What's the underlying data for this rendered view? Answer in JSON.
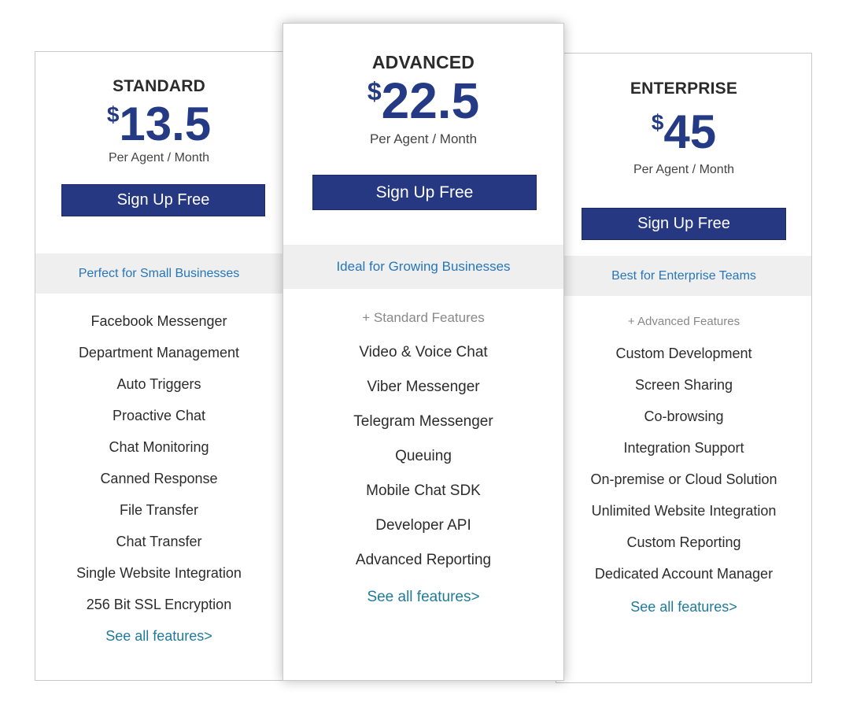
{
  "plans": [
    {
      "name": "STANDARD",
      "currency": "$",
      "price": "13.5",
      "period": "Per Agent / Month",
      "cta": "Sign Up Free",
      "tagline": "Perfect for Small Businesses",
      "features": [
        "Facebook Messenger",
        "Department Management",
        "Auto Triggers",
        "Proactive Chat",
        "Chat Monitoring",
        "Canned Response",
        "File Transfer",
        "Chat Transfer",
        "Single Website Integration",
        "256 Bit SSL Encryption"
      ],
      "see_all": "See all features>"
    },
    {
      "name": "ADVANCED",
      "currency": "$",
      "price": "22.5",
      "period": "Per Agent / Month",
      "cta": "Sign Up Free",
      "tagline": "Ideal for Growing Businesses",
      "includes": "+ Standard Features",
      "features": [
        "Video & Voice Chat",
        "Viber Messenger",
        "Telegram Messenger",
        "Queuing",
        "Mobile Chat SDK",
        "Developer API",
        "Advanced Reporting"
      ],
      "see_all": "See all features>"
    },
    {
      "name": "ENTERPRISE",
      "currency": "$",
      "price": "45",
      "period": "Per Agent / Month",
      "cta": "Sign Up Free",
      "tagline": "Best for Enterprise Teams",
      "includes": "+ Advanced Features",
      "features": [
        "Custom Development",
        "Screen Sharing",
        "Co-browsing",
        "Integration Support",
        "On-premise or Cloud Solution",
        "Unlimited Website Integration",
        "Custom Reporting",
        "Dedicated Account Manager"
      ],
      "see_all": "See all features>"
    }
  ],
  "colors": {
    "price": "#243a85",
    "button": "#263882",
    "tagline": "#2776b8",
    "link": "#1f7a9a",
    "band": "#efefef"
  }
}
